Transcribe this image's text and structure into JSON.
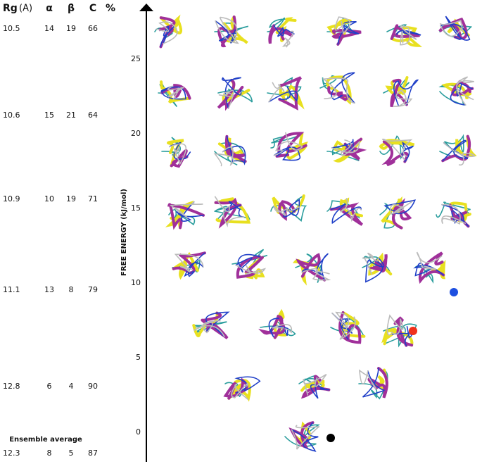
{
  "table": {
    "header": {
      "rg": "Rg",
      "unit": "(A)",
      "cols": [
        "α",
        "β",
        "C",
        "%"
      ]
    },
    "rows": [
      [
        10.5,
        14,
        19,
        66
      ],
      [
        10.6,
        15,
        21,
        64
      ],
      [
        10.9,
        10,
        19,
        71
      ],
      [
        11.1,
        13,
        8,
        79
      ],
      [
        12.8,
        6,
        4,
        90
      ]
    ],
    "average_title": "Ensemble average",
    "average": [
      12.3,
      8,
      5,
      87
    ]
  },
  "axis": {
    "label": "FREE ENERGY (kJ/mol)",
    "ticks": [
      0,
      5,
      10,
      15,
      20,
      25
    ]
  }
}
